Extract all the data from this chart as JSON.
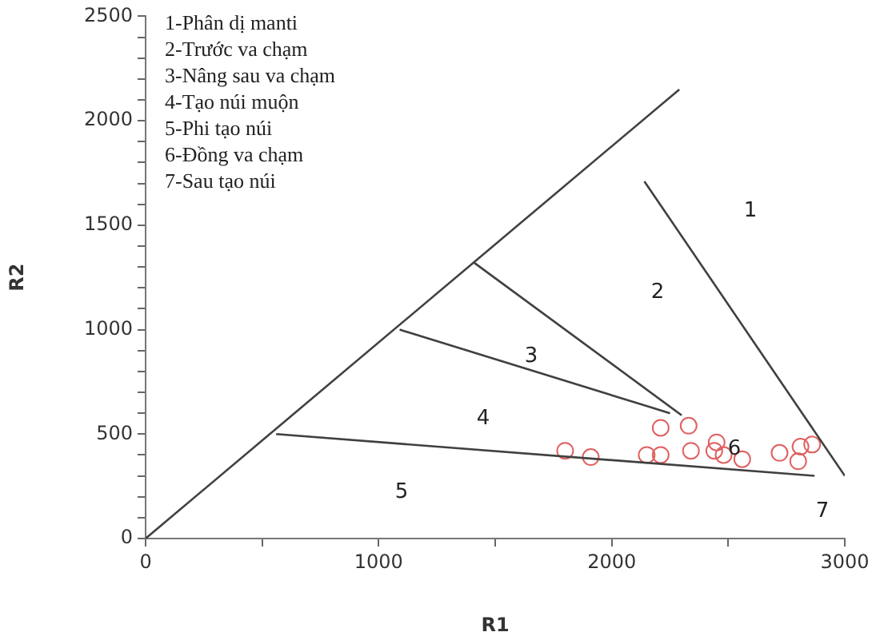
{
  "chart_data": {
    "type": "scatter",
    "xlabel": "R1",
    "ylabel": "R2",
    "xlim": [
      0,
      3000
    ],
    "ylim": [
      0,
      2500
    ],
    "xticks": [
      0,
      {
        "value": 500,
        "label": null
      },
      1000,
      {
        "value": 1500,
        "label": null
      },
      2000,
      {
        "value": 2500,
        "label": null
      },
      3000
    ],
    "yticks": [
      0,
      {
        "value": 100,
        "label": null
      },
      {
        "value": 200,
        "label": null
      },
      {
        "value": 300,
        "label": null
      },
      {
        "value": 400,
        "label": null
      },
      500,
      {
        "value": 600,
        "label": null
      },
      {
        "value": 700,
        "label": null
      },
      {
        "value": 800,
        "label": null
      },
      {
        "value": 900,
        "label": null
      },
      1000,
      {
        "value": 1100,
        "label": null
      },
      {
        "value": 1200,
        "label": null
      },
      {
        "value": 1300,
        "label": null
      },
      {
        "value": 1400,
        "label": null
      },
      1500,
      {
        "value": 1600,
        "label": null
      },
      {
        "value": 1700,
        "label": null
      },
      {
        "value": 1800,
        "label": null
      },
      {
        "value": 1900,
        "label": null
      },
      2000,
      {
        "value": 2100,
        "label": null
      },
      {
        "value": 2200,
        "label": null
      },
      {
        "value": 2300,
        "label": null
      },
      {
        "value": 2400,
        "label": null
      },
      2500
    ],
    "grid": false,
    "legend": false,
    "series": [
      {
        "type": "line",
        "color": "#404040",
        "x": [
          0,
          2290
        ],
        "values": [
          0,
          2150
        ]
      },
      {
        "type": "line",
        "color": "#404040",
        "x": [
          2140,
          3000
        ],
        "values": [
          1710,
          300
        ]
      },
      {
        "type": "line",
        "color": "#404040",
        "x": [
          1410,
          2300
        ],
        "values": [
          1320,
          590
        ]
      },
      {
        "type": "line",
        "color": "#404040",
        "x": [
          1090,
          2250
        ],
        "values": [
          1000,
          600
        ]
      },
      {
        "type": "line",
        "color": "#404040",
        "x": [
          560,
          2870
        ],
        "values": [
          500,
          300
        ]
      },
      {
        "type": "scatter",
        "marker": "circle",
        "color": "#e06060",
        "x": [
          1800,
          1910,
          2210,
          2330,
          2150,
          2210,
          2340,
          2450,
          2440,
          2480,
          2560,
          2720,
          2810,
          2860,
          2800
        ],
        "values": [
          420,
          390,
          530,
          540,
          400,
          400,
          420,
          460,
          420,
          400,
          380,
          410,
          440,
          450,
          370
        ]
      }
    ],
    "annotations": [
      "1-Phân dị manti",
      "2-Trước va chạm",
      "3-Nâng sau va chạm",
      "4-Tạo núi muộn",
      "5-Phi tạo núi",
      "6-Đồng va chạm",
      "7-Sau tạo núi",
      "1",
      "2",
      "3",
      "4",
      "5",
      "6",
      "7"
    ]
  }
}
